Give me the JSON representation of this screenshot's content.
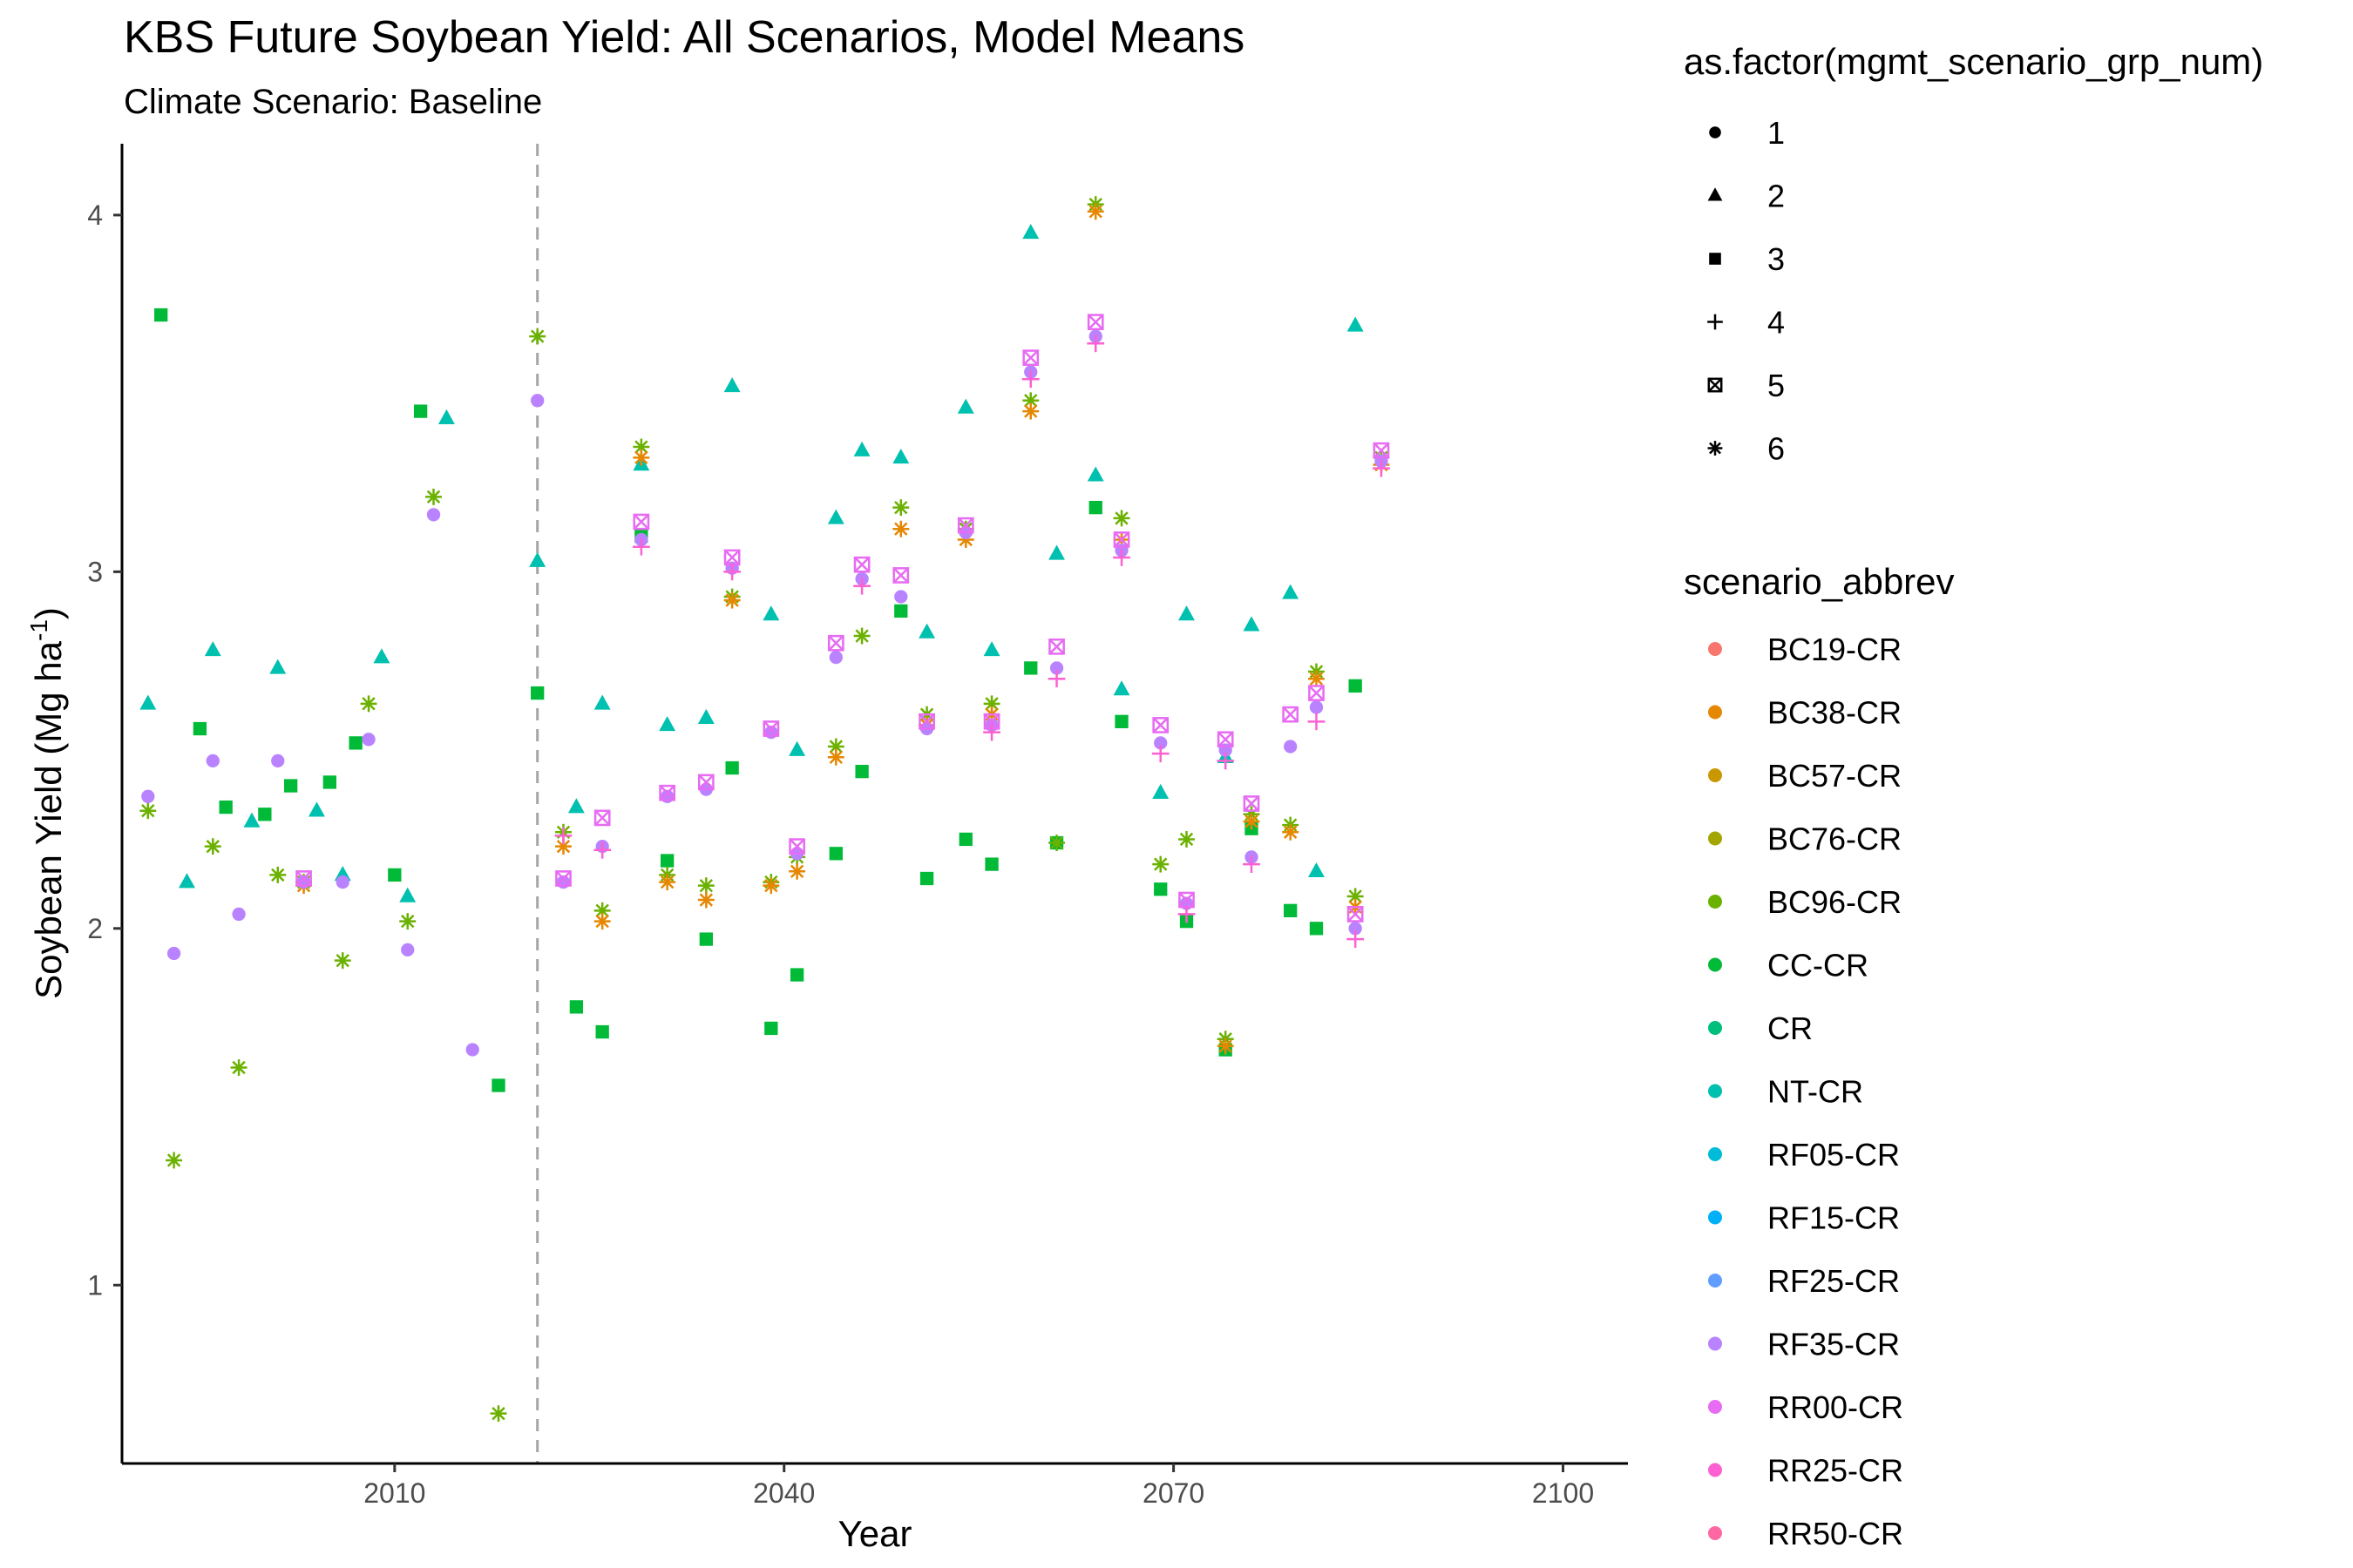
{
  "chart_data": {
    "type": "scatter",
    "title": "KBS Future Soybean Yield: All Scenarios, Model Means",
    "subtitle": "Climate Scenario: Baseline",
    "xlabel": "Year",
    "ylabel": "Soybean Yield (Mg ha",
    "ylabel_sup": "-1",
    "ylabel_close": ")",
    "xlim": [
      1989,
      2105
    ],
    "ylim": [
      0.5,
      4.2
    ],
    "x_ticks": [
      2010,
      2040,
      2070,
      2100
    ],
    "y_ticks": [
      1,
      2,
      3,
      4
    ],
    "vline_x": 2021,
    "grid": false,
    "legend_position": "right",
    "shape_legend": {
      "title": "as.factor(mgmt_scenario_grp_num)",
      "items": [
        {
          "label": "1",
          "shape": "circle"
        },
        {
          "label": "2",
          "shape": "triangle"
        },
        {
          "label": "3",
          "shape": "square"
        },
        {
          "label": "4",
          "shape": "plus"
        },
        {
          "label": "5",
          "shape": "boxx"
        },
        {
          "label": "6",
          "shape": "asterisk"
        }
      ]
    },
    "color_legend": {
      "title": "scenario_abbrev",
      "items": [
        {
          "label": "BC19-CR",
          "color": "#F8766D"
        },
        {
          "label": "BC38-CR",
          "color": "#E58700"
        },
        {
          "label": "BC57-CR",
          "color": "#C99800"
        },
        {
          "label": "BC76-CR",
          "color": "#A3A500"
        },
        {
          "label": "BC96-CR",
          "color": "#6BB100"
        },
        {
          "label": "CC-CR",
          "color": "#00BA38"
        },
        {
          "label": "CR",
          "color": "#00BF7D"
        },
        {
          "label": "NT-CR",
          "color": "#00C0AF"
        },
        {
          "label": "RF05-CR",
          "color": "#00BCD8"
        },
        {
          "label": "RF15-CR",
          "color": "#00B0F6"
        },
        {
          "label": "RF25-CR",
          "color": "#619CFF"
        },
        {
          "label": "RF35-CR",
          "color": "#B983FF"
        },
        {
          "label": "RR00-CR",
          "color": "#E76BF3"
        },
        {
          "label": "RR25-CR",
          "color": "#FD61D1"
        },
        {
          "label": "RR50-CR",
          "color": "#FF67A4"
        }
      ]
    },
    "series": [
      {
        "name": "NT-CR",
        "shape": "triangle",
        "color": "#00C0AF",
        "points": [
          [
            1991,
            2.63
          ],
          [
            1994,
            2.13
          ],
          [
            1996,
            2.78
          ],
          [
            1999,
            2.3
          ],
          [
            2001,
            2.73
          ],
          [
            2004,
            2.33
          ],
          [
            2006,
            2.15
          ],
          [
            2009,
            2.76
          ],
          [
            2011,
            2.09
          ],
          [
            2014,
            3.43
          ],
          [
            2021,
            3.03
          ],
          [
            2024,
            2.34
          ],
          [
            2026,
            2.63
          ],
          [
            2029,
            3.3
          ],
          [
            2031,
            2.57
          ],
          [
            2034,
            2.59
          ],
          [
            2036,
            3.52
          ],
          [
            2039,
            2.88
          ],
          [
            2041,
            2.5
          ],
          [
            2044,
            3.15
          ],
          [
            2046,
            3.34
          ],
          [
            2049,
            3.32
          ],
          [
            2051,
            2.83
          ],
          [
            2054,
            3.46
          ],
          [
            2056,
            2.78
          ],
          [
            2059,
            3.95
          ],
          [
            2061,
            3.05
          ],
          [
            2064,
            3.27
          ],
          [
            2066,
            2.67
          ],
          [
            2069,
            2.38
          ],
          [
            2071,
            2.88
          ],
          [
            2074,
            2.48
          ],
          [
            2076,
            2.85
          ],
          [
            2079,
            2.94
          ],
          [
            2081,
            2.16
          ],
          [
            2084,
            3.69
          ]
        ]
      },
      {
        "name": "CC-CR",
        "shape": "square",
        "color": "#00BA38",
        "points": [
          [
            1992,
            3.72
          ],
          [
            1995,
            2.56
          ],
          [
            1997,
            2.34
          ],
          [
            2000,
            2.32
          ],
          [
            2002,
            2.4
          ],
          [
            2005,
            2.41
          ],
          [
            2007,
            2.52
          ],
          [
            2010,
            2.15
          ],
          [
            2012,
            3.45
          ],
          [
            2018,
            1.56
          ],
          [
            2021,
            2.66
          ],
          [
            2024,
            1.78
          ],
          [
            2026,
            1.71
          ],
          [
            2029,
            3.1
          ],
          [
            2031,
            2.19
          ],
          [
            2034,
            1.97
          ],
          [
            2036,
            2.45
          ],
          [
            2039,
            1.72
          ],
          [
            2041,
            1.87
          ],
          [
            2044,
            2.21
          ],
          [
            2046,
            2.44
          ],
          [
            2049,
            2.89
          ],
          [
            2051,
            2.14
          ],
          [
            2054,
            2.25
          ],
          [
            2056,
            2.18
          ],
          [
            2059,
            2.73
          ],
          [
            2061,
            2.24
          ],
          [
            2064,
            3.18
          ],
          [
            2066,
            2.58
          ],
          [
            2069,
            2.11
          ],
          [
            2071,
            2.02
          ],
          [
            2074,
            1.66
          ],
          [
            2076,
            2.28
          ],
          [
            2079,
            2.05
          ],
          [
            2081,
            2.0
          ],
          [
            2084,
            2.68
          ]
        ]
      },
      {
        "name": "BC96-CR",
        "shape": "asterisk",
        "color": "#6BB100",
        "points": [
          [
            1991,
            2.33
          ],
          [
            1993,
            1.35
          ],
          [
            1996,
            2.23
          ],
          [
            1998,
            1.61
          ],
          [
            2001,
            2.15
          ],
          [
            2003,
            2.13
          ],
          [
            2006,
            1.91
          ],
          [
            2008,
            2.63
          ],
          [
            2011,
            2.02
          ],
          [
            2013,
            3.21
          ],
          [
            2018,
            0.64
          ],
          [
            2021,
            3.66
          ],
          [
            2023,
            2.27
          ],
          [
            2026,
            2.05
          ],
          [
            2029,
            3.35
          ],
          [
            2031,
            2.15
          ],
          [
            2034,
            2.12
          ],
          [
            2036,
            2.93
          ],
          [
            2039,
            2.13
          ],
          [
            2041,
            2.2
          ],
          [
            2044,
            2.51
          ],
          [
            2046,
            2.82
          ],
          [
            2049,
            3.18
          ],
          [
            2051,
            2.6
          ],
          [
            2054,
            3.12
          ],
          [
            2056,
            2.63
          ],
          [
            2059,
            3.48
          ],
          [
            2061,
            2.24
          ],
          [
            2064,
            4.03
          ],
          [
            2066,
            3.15
          ],
          [
            2069,
            2.18
          ],
          [
            2071,
            2.25
          ],
          [
            2074,
            1.69
          ],
          [
            2076,
            2.32
          ],
          [
            2079,
            2.29
          ],
          [
            2081,
            2.72
          ],
          [
            2084,
            2.09
          ],
          [
            2086,
            3.32
          ]
        ]
      },
      {
        "name": "BC38-CR",
        "shape": "asterisk",
        "color": "#E58700",
        "points": [
          [
            2003,
            2.12
          ],
          [
            2023,
            2.23
          ],
          [
            2026,
            2.02
          ],
          [
            2029,
            3.32
          ],
          [
            2031,
            2.13
          ],
          [
            2034,
            2.08
          ],
          [
            2036,
            2.92
          ],
          [
            2039,
            2.12
          ],
          [
            2041,
            2.16
          ],
          [
            2044,
            2.48
          ],
          [
            2049,
            3.12
          ],
          [
            2051,
            2.57
          ],
          [
            2054,
            3.09
          ],
          [
            2056,
            2.6
          ],
          [
            2059,
            3.45
          ],
          [
            2064,
            4.01
          ],
          [
            2066,
            3.09
          ],
          [
            2074,
            1.67
          ],
          [
            2076,
            2.3
          ],
          [
            2079,
            2.27
          ],
          [
            2081,
            2.7
          ],
          [
            2084,
            2.06
          ],
          [
            2086,
            3.3
          ]
        ]
      },
      {
        "name": "RF35-CR",
        "shape": "circle",
        "color": "#B983FF",
        "points": [
          [
            1991,
            2.37
          ],
          [
            1993,
            1.93
          ],
          [
            1996,
            2.47
          ],
          [
            1998,
            2.04
          ],
          [
            2001,
            2.47
          ],
          [
            2003,
            2.13
          ],
          [
            2006,
            2.13
          ],
          [
            2008,
            2.53
          ],
          [
            2011,
            1.94
          ],
          [
            2013,
            3.16
          ],
          [
            2016,
            1.66
          ],
          [
            2021,
            3.48
          ],
          [
            2023,
            2.13
          ],
          [
            2026,
            2.23
          ],
          [
            2029,
            3.09
          ],
          [
            2031,
            2.37
          ],
          [
            2034,
            2.39
          ],
          [
            2036,
            3.01
          ],
          [
            2039,
            2.55
          ],
          [
            2041,
            2.21
          ],
          [
            2044,
            2.76
          ],
          [
            2046,
            2.98
          ],
          [
            2049,
            2.93
          ],
          [
            2051,
            2.56
          ],
          [
            2054,
            3.11
          ],
          [
            2056,
            2.57
          ],
          [
            2059,
            3.56
          ],
          [
            2061,
            2.73
          ],
          [
            2064,
            3.66
          ],
          [
            2066,
            3.06
          ],
          [
            2069,
            2.52
          ],
          [
            2071,
            2.07
          ],
          [
            2074,
            2.5
          ],
          [
            2076,
            2.2
          ],
          [
            2079,
            2.51
          ],
          [
            2081,
            2.62
          ],
          [
            2084,
            2.0
          ],
          [
            2086,
            3.31
          ]
        ]
      },
      {
        "name": "RR00-CR",
        "shape": "boxx",
        "color": "#E76BF3",
        "points": [
          [
            2003,
            2.14
          ],
          [
            2023,
            2.14
          ],
          [
            2026,
            2.31
          ],
          [
            2029,
            3.14
          ],
          [
            2031,
            2.38
          ],
          [
            2034,
            2.41
          ],
          [
            2036,
            3.04
          ],
          [
            2039,
            2.56
          ],
          [
            2041,
            2.23
          ],
          [
            2044,
            2.8
          ],
          [
            2046,
            3.02
          ],
          [
            2049,
            2.99
          ],
          [
            2051,
            2.58
          ],
          [
            2054,
            3.13
          ],
          [
            2056,
            2.58
          ],
          [
            2059,
            3.6
          ],
          [
            2061,
            2.79
          ],
          [
            2064,
            3.7
          ],
          [
            2066,
            3.09
          ],
          [
            2069,
            2.57
          ],
          [
            2071,
            2.08
          ],
          [
            2074,
            2.53
          ],
          [
            2076,
            2.35
          ],
          [
            2079,
            2.6
          ],
          [
            2081,
            2.66
          ],
          [
            2084,
            2.04
          ],
          [
            2086,
            3.34
          ]
        ]
      },
      {
        "name": "RR25-CR",
        "shape": "plus",
        "color": "#FD61D1",
        "points": [
          [
            2023,
            2.26
          ],
          [
            2026,
            2.22
          ],
          [
            2029,
            3.07
          ],
          [
            2036,
            3.0
          ],
          [
            2046,
            2.96
          ],
          [
            2056,
            2.55
          ],
          [
            2059,
            3.54
          ],
          [
            2061,
            2.7
          ],
          [
            2064,
            3.64
          ],
          [
            2066,
            3.04
          ],
          [
            2069,
            2.49
          ],
          [
            2071,
            2.04
          ],
          [
            2074,
            2.47
          ],
          [
            2076,
            2.18
          ],
          [
            2081,
            2.58
          ],
          [
            2084,
            1.97
          ],
          [
            2086,
            3.29
          ]
        ]
      }
    ]
  }
}
